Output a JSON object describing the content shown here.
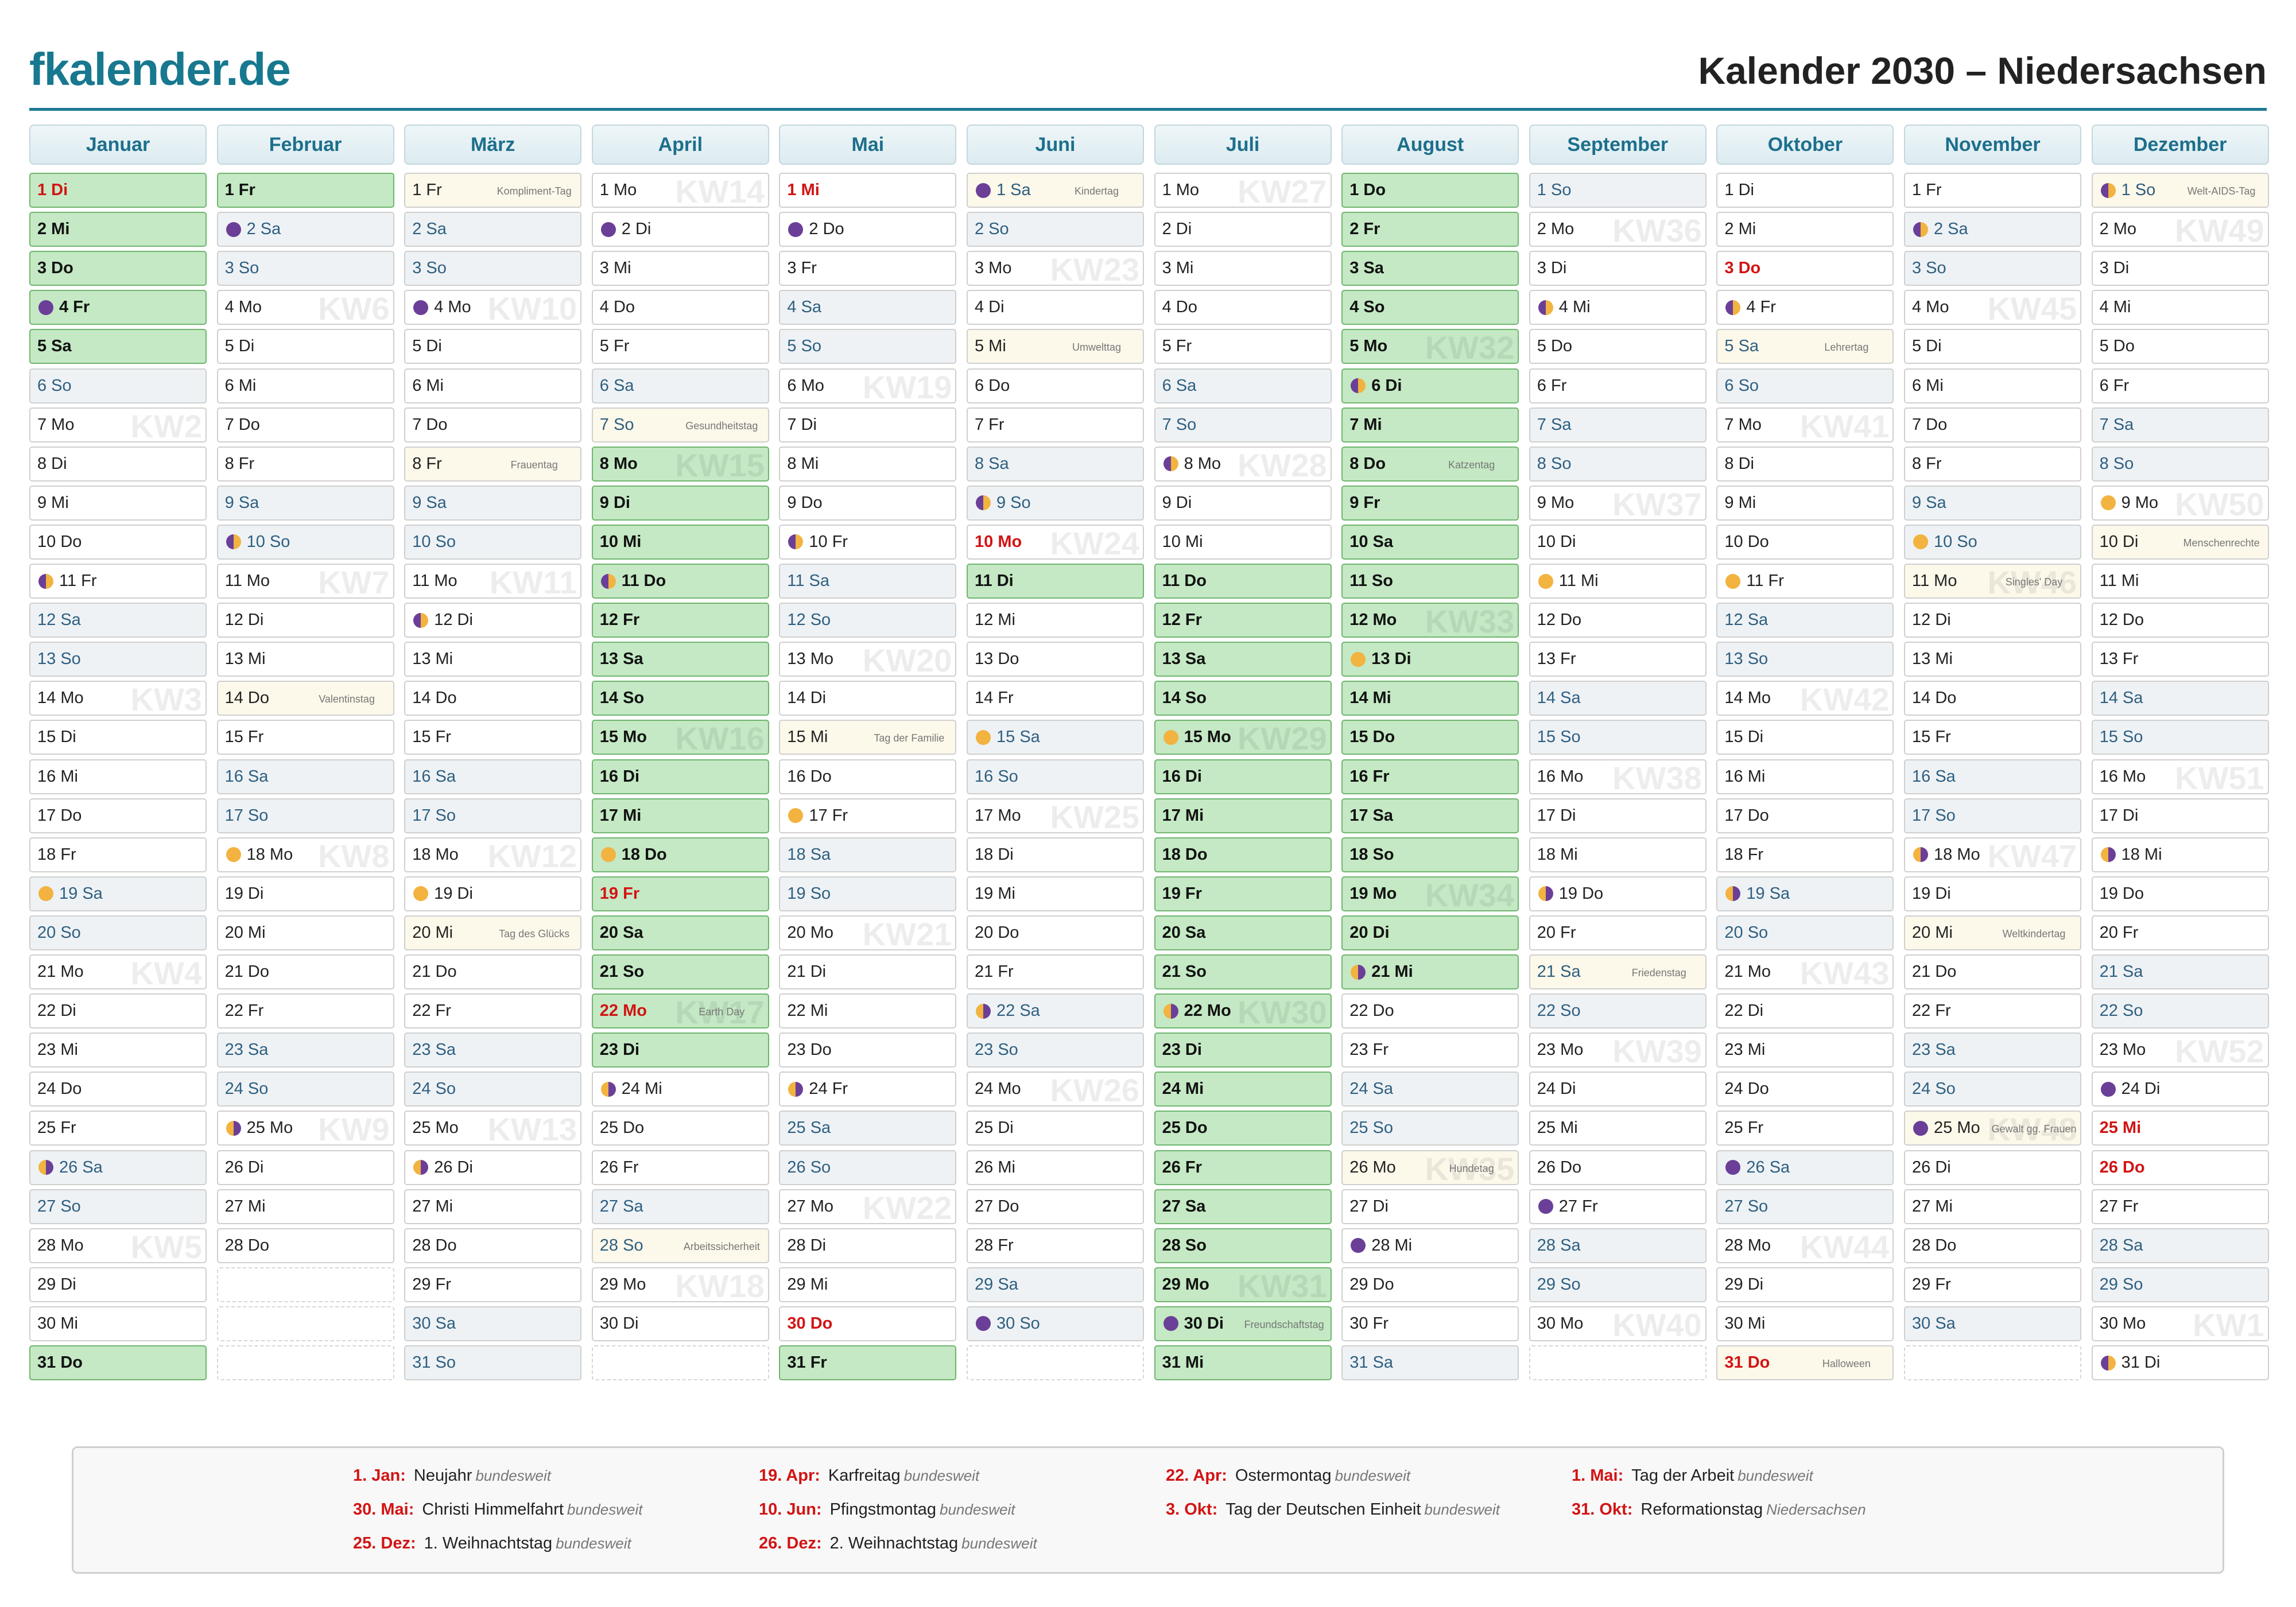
{
  "header": {
    "logo": "fkalender.de",
    "title": "Kalender 2030 – Niedersachsen"
  },
  "months": [
    {
      "name": "Januar",
      "days": [
        {
          "label": "1 Di",
          "holiday": true,
          "vacation": true
        },
        {
          "label": "2 Mi",
          "vacation": true
        },
        {
          "label": "3 Do",
          "vacation": true
        },
        {
          "label": "4 Fr",
          "vacation": true,
          "moon": "new"
        },
        {
          "label": "5 Sa",
          "vacation": true
        },
        "6 So",
        {
          "label": "7 Mo",
          "week": "KW2"
        },
        "8 Di",
        "9 Mi",
        "10 Do",
        {
          "label": "11 Fr",
          "moon": "first"
        },
        "12 Sa",
        "13 So",
        {
          "label": "14 Mo",
          "week": "KW3"
        },
        "15 Di",
        "16 Mi",
        "17 Do",
        "18 Fr",
        {
          "label": "19 Sa",
          "moon": "full"
        },
        "20 So",
        {
          "label": "21 Mo",
          "week": "KW4"
        },
        "22 Di",
        "23 Mi",
        "24 Do",
        "25 Fr",
        {
          "label": "26 Sa",
          "moon": "last"
        },
        "27 So",
        {
          "label": "28 Mo",
          "week": "KW5"
        },
        "29 Di",
        "30 Mi",
        {
          "label": "31 Do",
          "vacation": true
        }
      ]
    },
    {
      "name": "Februar",
      "days": [
        {
          "label": "1 Fr",
          "vacation": true
        },
        {
          "label": "2 Sa",
          "moon": "new"
        },
        "3 So",
        {
          "label": "4 Mo",
          "week": "KW6"
        },
        "5 Di",
        "6 Mi",
        "7 Do",
        "8 Fr",
        "9 Sa",
        {
          "label": "10 So",
          "moon": "first"
        },
        {
          "label": "11 Mo",
          "week": "KW7"
        },
        "12 Di",
        "13 Mi",
        {
          "label": "14 Do",
          "note": "Valentinstag"
        },
        "15 Fr",
        "16 Sa",
        "17 So",
        {
          "label": "18 Mo",
          "week": "KW8",
          "moon": "full"
        },
        "19 Di",
        "20 Mi",
        "21 Do",
        "22 Fr",
        "23 Sa",
        "24 So",
        {
          "label": "25 Mo",
          "week": "KW9",
          "moon": "last"
        },
        "26 Di",
        "27 Mi",
        "28 Do"
      ]
    },
    {
      "name": "März",
      "days": [
        {
          "label": "1 Fr",
          "note": "Kompliment-Tag"
        },
        "2 Sa",
        "3 So",
        {
          "label": "4 Mo",
          "week": "KW10",
          "moon": "new"
        },
        "5 Di",
        "6 Mi",
        "7 Do",
        {
          "label": "8 Fr",
          "note": "Frauentag"
        },
        "9 Sa",
        "10 So",
        {
          "label": "11 Mo",
          "week": "KW11"
        },
        {
          "label": "12 Di",
          "moon": "first"
        },
        "13 Mi",
        "14 Do",
        "15 Fr",
        "16 Sa",
        "17 So",
        {
          "label": "18 Mo",
          "week": "KW12"
        },
        {
          "label": "19 Di",
          "moon": "full"
        },
        {
          "label": "20 Mi",
          "note": "Tag des Glücks"
        },
        "21 Do",
        "22 Fr",
        "23 Sa",
        "24 So",
        {
          "label": "25 Mo",
          "week": "KW13"
        },
        {
          "label": "26 Di",
          "moon": "last"
        },
        "27 Mi",
        "28 Do",
        "29 Fr",
        "30 Sa",
        "31 So"
      ]
    },
    {
      "name": "April",
      "days": [
        {
          "label": "1 Mo",
          "week": "KW14"
        },
        {
          "label": "2 Di",
          "moon": "new"
        },
        "3 Mi",
        "4 Do",
        "5 Fr",
        "6 Sa",
        {
          "label": "7 So",
          "note": "Gesundheitstag"
        },
        {
          "label": "8 Mo",
          "week": "KW15",
          "vacation": true
        },
        {
          "label": "9 Di",
          "vacation": true
        },
        {
          "label": "10 Mi",
          "vacation": true
        },
        {
          "label": "11 Do",
          "vacation": true,
          "moon": "first"
        },
        {
          "label": "12 Fr",
          "vacation": true
        },
        {
          "label": "13 Sa",
          "vacation": true
        },
        {
          "label": "14 So",
          "vacation": true
        },
        {
          "label": "15 Mo",
          "week": "KW16",
          "vacation": true
        },
        {
          "label": "16 Di",
          "vacation": true
        },
        {
          "label": "17 Mi",
          "vacation": true
        },
        {
          "label": "18 Do",
          "vacation": true,
          "moon": "full"
        },
        {
          "label": "19 Fr",
          "vacation": true,
          "holiday": true
        },
        {
          "label": "20 Sa",
          "vacation": true
        },
        {
          "label": "21 So",
          "vacation": true
        },
        {
          "label": "22 Mo",
          "week": "KW17",
          "vacation": true,
          "holiday": true,
          "note": "Earth Day"
        },
        {
          "label": "23 Di",
          "vacation": true
        },
        {
          "label": "24 Mi",
          "moon": "last"
        },
        "25 Do",
        "26 Fr",
        "27 Sa",
        {
          "label": "28 So",
          "note": "Arbeitssicherheit"
        },
        {
          "label": "29 Mo",
          "week": "KW18"
        },
        "30 Di"
      ]
    },
    {
      "name": "Mai",
      "days": [
        {
          "label": "1 Mi",
          "holiday": true
        },
        {
          "label": "2 Do",
          "moon": "new"
        },
        "3 Fr",
        "4 Sa",
        "5 So",
        {
          "label": "6 Mo",
          "week": "KW19"
        },
        "7 Di",
        "8 Mi",
        "9 Do",
        {
          "label": "10 Fr",
          "moon": "first"
        },
        "11 Sa",
        "12 So",
        {
          "label": "13 Mo",
          "week": "KW20"
        },
        "14 Di",
        {
          "label": "15 Mi",
          "note": "Tag der Familie"
        },
        "16 Do",
        {
          "label": "17 Fr",
          "moon": "full"
        },
        "18 Sa",
        "19 So",
        {
          "label": "20 Mo",
          "week": "KW21"
        },
        "21 Di",
        "22 Mi",
        "23 Do",
        {
          "label": "24 Fr",
          "moon": "last"
        },
        "25 Sa",
        "26 So",
        {
          "label": "27 Mo",
          "week": "KW22"
        },
        "28 Di",
        "29 Mi",
        {
          "label": "30 Do",
          "holiday": true
        },
        {
          "label": "31 Fr",
          "vacation": true
        }
      ]
    },
    {
      "name": "Juni",
      "days": [
        {
          "label": "1 Sa",
          "moon": "new",
          "note": "Kindertag"
        },
        "2 So",
        {
          "label": "3 Mo",
          "week": "KW23"
        },
        "4 Di",
        {
          "label": "5 Mi",
          "note": "Umwelttag"
        },
        "6 Do",
        "7 Fr",
        "8 Sa",
        {
          "label": "9 So",
          "moon": "first"
        },
        {
          "label": "10 Mo",
          "week": "KW24",
          "holiday": true
        },
        {
          "label": "11 Di",
          "vacation": true
        },
        "12 Mi",
        "13 Do",
        "14 Fr",
        {
          "label": "15 Sa",
          "moon": "full"
        },
        "16 So",
        {
          "label": "17 Mo",
          "week": "KW25"
        },
        "18 Di",
        "19 Mi",
        "20 Do",
        "21 Fr",
        {
          "label": "22 Sa",
          "moon": "last"
        },
        "23 So",
        {
          "label": "24 Mo",
          "week": "KW26"
        },
        "25 Di",
        "26 Mi",
        "27 Do",
        "28 Fr",
        "29 Sa",
        {
          "label": "30 So",
          "moon": "new"
        }
      ]
    },
    {
      "name": "Juli",
      "days": [
        {
          "label": "1 Mo",
          "week": "KW27"
        },
        "2 Di",
        "3 Mi",
        "4 Do",
        "5 Fr",
        "6 Sa",
        "7 So",
        {
          "label": "8 Mo",
          "week": "KW28",
          "moon": "first"
        },
        "9 Di",
        "10 Mi",
        {
          "label": "11 Do",
          "vacation": true
        },
        {
          "label": "12 Fr",
          "vacation": true
        },
        {
          "label": "13 Sa",
          "vacation": true
        },
        {
          "label": "14 So",
          "vacation": true
        },
        {
          "label": "15 Mo",
          "week": "KW29",
          "vacation": true,
          "moon": "full"
        },
        {
          "label": "16 Di",
          "vacation": true
        },
        {
          "label": "17 Mi",
          "vacation": true
        },
        {
          "label": "18 Do",
          "vacation": true
        },
        {
          "label": "19 Fr",
          "vacation": true
        },
        {
          "label": "20 Sa",
          "vacation": true
        },
        {
          "label": "21 So",
          "vacation": true
        },
        {
          "label": "22 Mo",
          "week": "KW30",
          "vacation": true,
          "moon": "last"
        },
        {
          "label": "23 Di",
          "vacation": true
        },
        {
          "label": "24 Mi",
          "vacation": true
        },
        {
          "label": "25 Do",
          "vacation": true
        },
        {
          "label": "26 Fr",
          "vacation": true
        },
        {
          "label": "27 Sa",
          "vacation": true
        },
        {
          "label": "28 So",
          "vacation": true
        },
        {
          "label": "29 Mo",
          "week": "KW31",
          "vacation": true
        },
        {
          "label": "30 Di",
          "vacation": true,
          "moon": "new",
          "note": "Freundschaftstag"
        },
        {
          "label": "31 Mi",
          "vacation": true
        }
      ]
    },
    {
      "name": "August",
      "days": [
        {
          "label": "1 Do",
          "vacation": true
        },
        {
          "label": "2 Fr",
          "vacation": true
        },
        {
          "label": "3 Sa",
          "vacation": true
        },
        {
          "label": "4 So",
          "vacation": true
        },
        {
          "label": "5 Mo",
          "week": "KW32",
          "vacation": true
        },
        {
          "label": "6 Di",
          "vacation": true,
          "moon": "first"
        },
        {
          "label": "7 Mi",
          "vacation": true
        },
        {
          "label": "8 Do",
          "vacation": true,
          "note": "Katzentag"
        },
        {
          "label": "9 Fr",
          "vacation": true
        },
        {
          "label": "10 Sa",
          "vacation": true
        },
        {
          "label": "11 So",
          "vacation": true
        },
        {
          "label": "12 Mo",
          "week": "KW33",
          "vacation": true
        },
        {
          "label": "13 Di",
          "vacation": true,
          "moon": "full"
        },
        {
          "label": "14 Mi",
          "vacation": true
        },
        {
          "label": "15 Do",
          "vacation": true
        },
        {
          "label": "16 Fr",
          "vacation": true
        },
        {
          "label": "17 Sa",
          "vacation": true
        },
        {
          "label": "18 So",
          "vacation": true
        },
        {
          "label": "19 Mo",
          "week": "KW34",
          "vacation": true
        },
        {
          "label": "20 Di",
          "vacation": true
        },
        {
          "label": "21 Mi",
          "vacation": true,
          "moon": "last"
        },
        "22 Do",
        "23 Fr",
        "24 Sa",
        "25 So",
        {
          "label": "26 Mo",
          "week": "KW35",
          "note": "Hundetag"
        },
        "27 Di",
        {
          "label": "28 Mi",
          "moon": "new"
        },
        "29 Do",
        "30 Fr",
        "31 Sa"
      ]
    },
    {
      "name": "September",
      "days": [
        "1 So",
        {
          "label": "2 Mo",
          "week": "KW36"
        },
        "3 Di",
        {
          "label": "4 Mi",
          "moon": "first"
        },
        "5 Do",
        "6 Fr",
        "7 Sa",
        "8 So",
        {
          "label": "9 Mo",
          "week": "KW37"
        },
        "10 Di",
        {
          "label": "11 Mi",
          "moon": "full"
        },
        "12 Do",
        "13 Fr",
        "14 Sa",
        "15 So",
        {
          "label": "16 Mo",
          "week": "KW38"
        },
        "17 Di",
        "18 Mi",
        {
          "label": "19 Do",
          "moon": "last"
        },
        "20 Fr",
        {
          "label": "21 Sa",
          "note": "Friedenstag"
        },
        "22 So",
        {
          "label": "23 Mo",
          "week": "KW39"
        },
        "24 Di",
        "25 Mi",
        "26 Do",
        {
          "label": "27 Fr",
          "moon": "new"
        },
        "28 Sa",
        "29 So",
        {
          "label": "30 Mo",
          "week": "KW40"
        }
      ]
    },
    {
      "name": "Oktober",
      "days": [
        "1 Di",
        "2 Mi",
        {
          "label": "3 Do",
          "holiday": true
        },
        {
          "label": "4 Fr",
          "moon": "first"
        },
        {
          "label": "5 Sa",
          "note": "Lehrertag"
        },
        "6 So",
        {
          "label": "7 Mo",
          "week": "KW41"
        },
        "8 Di",
        "9 Mi",
        "10 Do",
        {
          "label": "11 Fr",
          "moon": "full"
        },
        "12 Sa",
        "13 So",
        {
          "label": "14 Mo",
          "week": "KW42"
        },
        "15 Di",
        "16 Mi",
        "17 Do",
        "18 Fr",
        {
          "label": "19 Sa",
          "moon": "last"
        },
        "20 So",
        {
          "label": "21 Mo",
          "week": "KW43"
        },
        "22 Di",
        "23 Mi",
        "24 Do",
        "25 Fr",
        {
          "label": "26 Sa",
          "moon": "new"
        },
        "27 So",
        {
          "label": "28 Mo",
          "week": "KW44"
        },
        "29 Di",
        "30 Mi",
        {
          "label": "31 Do",
          "holiday": true,
          "note": "Halloween"
        }
      ]
    },
    {
      "name": "November",
      "days": [
        "1 Fr",
        {
          "label": "2 Sa",
          "moon": "first"
        },
        "3 So",
        {
          "label": "4 Mo",
          "week": "KW45"
        },
        "5 Di",
        "6 Mi",
        "7 Do",
        "8 Fr",
        "9 Sa",
        {
          "label": "10 So",
          "moon": "full"
        },
        {
          "label": "11 Mo",
          "week": "KW46",
          "note": "Singles' Day"
        },
        "12 Di",
        "13 Mi",
        "14 Do",
        "15 Fr",
        "16 Sa",
        "17 So",
        {
          "label": "18 Mo",
          "week": "KW47",
          "moon": "last"
        },
        "19 Di",
        {
          "label": "20 Mi",
          "note": "Weltkindertag"
        },
        "21 Do",
        "22 Fr",
        "23 Sa",
        "24 So",
        {
          "label": "25 Mo",
          "week": "KW48",
          "moon": "new",
          "note": "Gewalt gg. Frauen"
        },
        "26 Di",
        "27 Mi",
        "28 Do",
        "29 Fr",
        "30 Sa"
      ]
    },
    {
      "name": "Dezember",
      "days": [
        {
          "label": "1 So",
          "moon": "first",
          "note": "Welt-AIDS-Tag"
        },
        {
          "label": "2 Mo",
          "week": "KW49"
        },
        "3 Di",
        "4 Mi",
        "5 Do",
        "6 Fr",
        "7 Sa",
        "8 So",
        {
          "label": "9 Mo",
          "week": "KW50",
          "moon": "full"
        },
        {
          "label": "10 Di",
          "note": "Menschenrechte"
        },
        "11 Mi",
        "12 Do",
        "13 Fr",
        "14 Sa",
        "15 So",
        {
          "label": "16 Mo",
          "week": "KW51"
        },
        "17 Di",
        {
          "label": "18 Mi",
          "moon": "last"
        },
        "19 Do",
        "20 Fr",
        "21 Sa",
        "22 So",
        {
          "label": "23 Mo",
          "week": "KW52"
        },
        {
          "label": "24 Di",
          "moon": "new"
        },
        {
          "label": "25 Mi",
          "holiday": true
        },
        {
          "label": "26 Do",
          "holiday": true
        },
        "27 Fr",
        "28 Sa",
        "29 So",
        {
          "label": "30 Mo",
          "week": "KW1"
        },
        {
          "label": "31 Di",
          "moon": "first"
        }
      ]
    }
  ],
  "holidays": [
    {
      "date": "1. Jan:",
      "name": "Neujahr",
      "scope": "bundesweit"
    },
    {
      "date": "19. Apr:",
      "name": "Karfreitag",
      "scope": "bundesweit"
    },
    {
      "date": "22. Apr:",
      "name": "Ostermontag",
      "scope": "bundesweit"
    },
    {
      "date": "1. Mai:",
      "name": "Tag der Arbeit",
      "scope": "bundesweit"
    },
    {
      "date": "30. Mai:",
      "name": "Christi Himmelfahrt",
      "scope": "bundesweit"
    },
    {
      "date": "10. Jun:",
      "name": "Pfingstmontag",
      "scope": "bundesweit"
    },
    {
      "date": "3. Okt:",
      "name": "Tag der Deutschen Einheit",
      "scope": "bundesweit"
    },
    {
      "date": "31. Okt:",
      "name": "Reformationstag",
      "scope": "Niedersachsen"
    },
    {
      "date": "25. Dez:",
      "name": "1. Weihnachtstag",
      "scope": "bundesweit"
    },
    {
      "date": "26. Dez:",
      "name": "2. Weihnachtstag",
      "scope": "bundesweit"
    }
  ]
}
